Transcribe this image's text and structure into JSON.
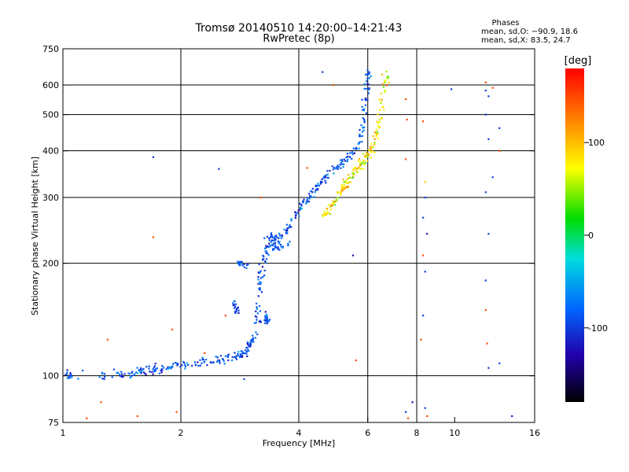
{
  "chart_data": {
    "type": "scatter",
    "title": "Tromsø 20140510 14:20:00–14:21:43",
    "subtitle": "RwPretec (8p)",
    "xlabel": "Frequency [MHz]",
    "ylabel": "Stationary phase Virtual Height [km]",
    "x_scale": "log",
    "y_scale": "log",
    "xlim": [
      1,
      16
    ],
    "ylim": [
      75,
      750
    ],
    "x_ticks": [
      1,
      2,
      4,
      6,
      8,
      10,
      16
    ],
    "y_ticks": [
      75,
      100,
      200,
      300,
      400,
      500,
      600,
      750
    ],
    "x_grid": [
      2,
      4,
      6,
      8
    ],
    "y_grid": [
      100,
      200,
      300,
      400,
      500,
      600
    ],
    "grid": true,
    "phases": {
      "heading": "Phases",
      "line_o": "mean, sd,O: −90.9, 18.6",
      "line_x": "mean, sd,X:  83.5, 24.7"
    },
    "colorbar": {
      "label": "[deg]",
      "range": [
        -180,
        180
      ],
      "ticks": [
        100,
        0,
        -100
      ],
      "colormap": "rainbow"
    },
    "series": [
      {
        "mode": "O",
        "phase_mean": -90.9,
        "phase_sd": 18.6,
        "trace": [
          [
            1.02,
            100
          ],
          [
            1.05,
            100
          ],
          [
            1.4,
            101
          ],
          [
            1.5,
            101
          ],
          [
            1.6,
            103
          ],
          [
            1.7,
            104
          ],
          [
            1.8,
            104
          ],
          [
            2.0,
            107
          ],
          [
            2.2,
            108
          ],
          [
            2.4,
            109
          ],
          [
            2.6,
            111
          ],
          [
            2.8,
            113
          ],
          [
            2.9,
            115
          ],
          [
            3.0,
            120
          ],
          [
            3.1,
            128
          ],
          [
            3.15,
            150
          ],
          [
            3.2,
            180
          ],
          [
            3.25,
            205
          ],
          [
            3.3,
            222
          ],
          [
            3.5,
            228
          ],
          [
            3.7,
            245
          ],
          [
            3.9,
            265
          ],
          [
            4.1,
            290
          ],
          [
            4.3,
            305
          ],
          [
            4.5,
            320
          ],
          [
            4.7,
            340
          ],
          [
            5.0,
            360
          ],
          [
            5.3,
            380
          ],
          [
            5.6,
            400
          ],
          [
            5.8,
            450
          ],
          [
            5.9,
            520
          ],
          [
            6.0,
            600
          ],
          [
            6.05,
            650
          ]
        ],
        "clusters": [
          [
            2.7,
            158,
            2.8,
            148
          ],
          [
            2.8,
            200,
            2.95,
            198
          ],
          [
            3.3,
            238,
            3.6,
            232
          ],
          [
            3.3,
            145,
            3.35,
            138
          ],
          [
            3.4,
            218,
            3.8,
            226
          ]
        ]
      },
      {
        "mode": "X",
        "phase_mean": 83.5,
        "phase_sd": 24.7,
        "trace": [
          [
            4.6,
            265
          ],
          [
            4.8,
            280
          ],
          [
            5.0,
            300
          ],
          [
            5.2,
            320
          ],
          [
            5.4,
            340
          ],
          [
            5.6,
            355
          ],
          [
            5.8,
            370
          ],
          [
            6.0,
            390
          ],
          [
            6.2,
            420
          ],
          [
            6.4,
            470
          ],
          [
            6.6,
            560
          ],
          [
            6.7,
            650
          ]
        ]
      }
    ],
    "scatter_points": [
      [
        1.7,
        385,
        -100
      ],
      [
        2.5,
        358,
        -100
      ],
      [
        1.7,
        235,
        150
      ],
      [
        1.3,
        125,
        150
      ],
      [
        1.9,
        133,
        150
      ],
      [
        1.95,
        80,
        150
      ],
      [
        4.6,
        650,
        -100
      ],
      [
        4.9,
        600,
        150
      ],
      [
        7.5,
        550,
        150
      ],
      [
        7.55,
        485,
        150
      ],
      [
        8.3,
        480,
        150
      ],
      [
        7.5,
        380,
        150
      ],
      [
        8.4,
        330,
        100
      ],
      [
        8.4,
        300,
        -100
      ],
      [
        8.3,
        265,
        -100
      ],
      [
        8.5,
        240,
        -120
      ],
      [
        8.4,
        190,
        -100
      ],
      [
        8.3,
        210,
        150
      ],
      [
        8.3,
        145,
        -100
      ],
      [
        8.2,
        125,
        150
      ],
      [
        7.8,
        85,
        -120
      ],
      [
        8.4,
        82,
        -100
      ],
      [
        8.5,
        78,
        150
      ],
      [
        12.0,
        610,
        150
      ],
      [
        12.0,
        580,
        -100
      ],
      [
        12.2,
        560,
        -100
      ],
      [
        12.0,
        500,
        -100
      ],
      [
        12.5,
        590,
        150
      ],
      [
        13.0,
        460,
        -100
      ],
      [
        13.0,
        400,
        150
      ],
      [
        12.2,
        430,
        -100
      ],
      [
        12.5,
        340,
        -100
      ],
      [
        12.0,
        310,
        -100
      ],
      [
        12.2,
        240,
        -100
      ],
      [
        12.0,
        180,
        -100
      ],
      [
        12.0,
        150,
        150
      ],
      [
        12.1,
        122,
        150
      ],
      [
        12.2,
        105,
        -100
      ],
      [
        13.0,
        108,
        -100
      ],
      [
        14.0,
        78,
        -120
      ],
      [
        2.9,
        98,
        -100
      ],
      [
        3.3,
        140,
        -100
      ],
      [
        5.5,
        210,
        -120
      ],
      [
        5.6,
        110,
        150
      ],
      [
        7.5,
        80,
        -100
      ],
      [
        7.6,
        77,
        150
      ],
      [
        9.8,
        585,
        -100
      ],
      [
        4.2,
        360,
        150
      ],
      [
        3.2,
        300,
        150
      ],
      [
        2.6,
        145,
        150
      ],
      [
        2.3,
        115,
        150
      ],
      [
        1.25,
        85,
        150
      ],
      [
        1.15,
        77,
        150
      ],
      [
        1.55,
        78,
        150
      ],
      [
        1.35,
        104,
        -100
      ]
    ]
  }
}
